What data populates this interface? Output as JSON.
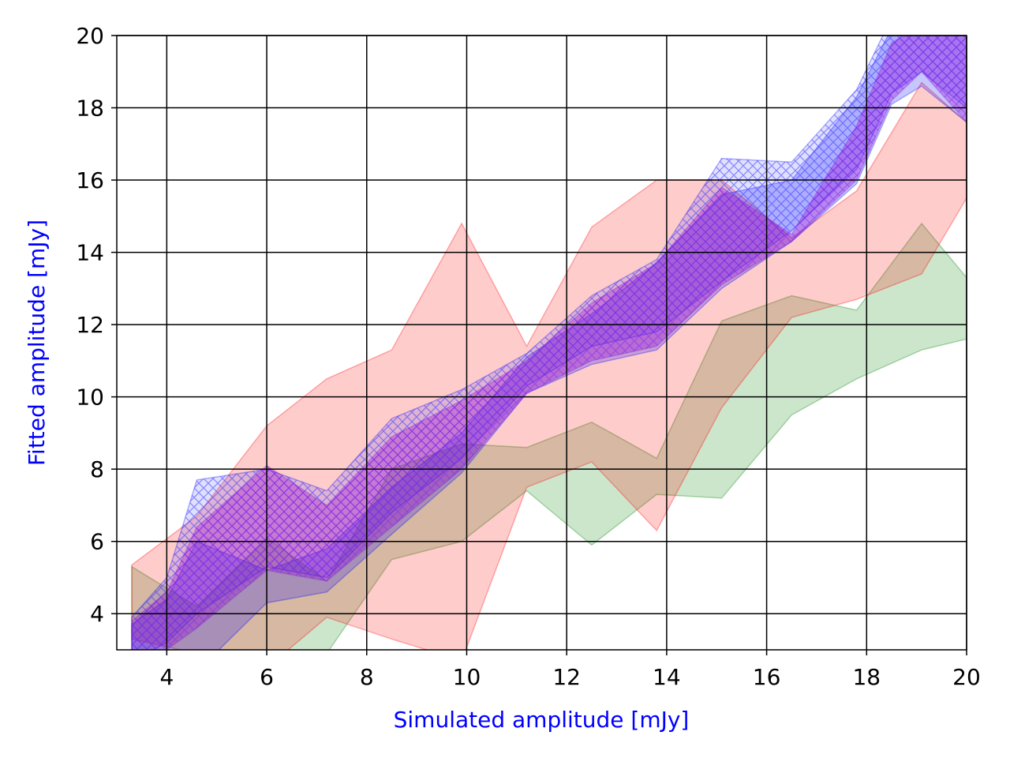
{
  "chart_data": {
    "type": "area",
    "title": "",
    "xlabel": "Simulated amplitude [mJy]",
    "ylabel": "Fitted amplitude [mJy]",
    "xlim": [
      3,
      20
    ],
    "ylim": [
      3,
      20
    ],
    "xticks": [
      4,
      6,
      8,
      10,
      12,
      14,
      16,
      18,
      20
    ],
    "yticks": [
      4,
      6,
      8,
      10,
      12,
      14,
      16,
      18,
      20
    ],
    "grid": true,
    "legend": "none",
    "colors": {
      "axis_label": "#0000ff",
      "blue_band": "#0000ff",
      "purple_band": "#9400d3",
      "red_band": "#ff0000",
      "green_band": "#008000",
      "grid": "#000000"
    },
    "bands": [
      {
        "color": "green",
        "hatch": false,
        "x": [
          3.3,
          4.6,
          6.0,
          7.2,
          8.5,
          9.9,
          11.2,
          12.5,
          13.8,
          15.1,
          16.5,
          17.8,
          19.1,
          20.0
        ],
        "upper": [
          5.3,
          4.2,
          6.1,
          4.9,
          8.0,
          8.7,
          8.6,
          9.3,
          8.3,
          12.1,
          12.8,
          12.4,
          14.8,
          13.3
        ],
        "lower": [
          3.0,
          2.8,
          2.5,
          2.9,
          5.5,
          6.0,
          7.4,
          5.9,
          7.3,
          7.2,
          9.5,
          10.5,
          11.3,
          11.6
        ]
      },
      {
        "color": "red",
        "hatch": false,
        "x": [
          3.3,
          4.6,
          6.0,
          7.2,
          8.5,
          9.9,
          11.2,
          12.5,
          13.8,
          15.1,
          16.5,
          17.8,
          19.1,
          20.0
        ],
        "upper": [
          5.35,
          6.7,
          9.2,
          10.5,
          11.3,
          14.8,
          11.4,
          14.7,
          16.0,
          16.0,
          14.4,
          15.7,
          18.7,
          17.6
        ],
        "lower": [
          3.3,
          2.9,
          2.5,
          3.9,
          3.3,
          2.7,
          7.5,
          8.2,
          6.3,
          9.7,
          12.2,
          12.7,
          13.4,
          15.5
        ]
      },
      {
        "color": "blue",
        "hatch": false,
        "x": [
          3.3,
          4.0,
          4.6,
          6.0,
          7.2,
          8.5,
          9.9,
          11.2,
          12.5,
          13.8,
          15.1,
          16.5,
          17.8,
          18.5,
          19.1,
          20.0
        ],
        "upper": [
          3.7,
          4.4,
          6.0,
          5.2,
          5.8,
          7.5,
          9.0,
          11.1,
          12.3,
          13.7,
          15.6,
          16.0,
          18.3,
          20.2,
          20.0,
          20.0
        ],
        "lower": [
          2.5,
          2.6,
          2.4,
          4.3,
          4.6,
          6.2,
          7.9,
          10.1,
          10.9,
          11.3,
          13.0,
          14.3,
          15.9,
          18.1,
          18.6,
          17.6
        ]
      },
      {
        "color": "blue",
        "hatch": true,
        "x": [
          3.3,
          4.0,
          4.6,
          6.0,
          7.2,
          8.5,
          9.9,
          11.2,
          12.5,
          13.8,
          15.1,
          16.5,
          17.8,
          18.5,
          19.1,
          20.0
        ],
        "upper": [
          3.9,
          5.0,
          7.7,
          8.0,
          7.4,
          9.4,
          10.2,
          11.2,
          12.8,
          13.8,
          16.6,
          16.5,
          18.5,
          20.5,
          20.4,
          20.3
        ],
        "lower": [
          2.7,
          3.2,
          4.0,
          5.3,
          5.0,
          6.8,
          8.3,
          10.3,
          11.4,
          11.8,
          13.2,
          14.6,
          16.3,
          18.4,
          19.0,
          18.0
        ]
      },
      {
        "color": "purple",
        "hatch": true,
        "x": [
          3.3,
          4.0,
          4.6,
          6.0,
          7.2,
          8.5,
          9.9,
          11.2,
          12.5,
          13.8,
          15.1,
          16.5,
          17.8,
          18.5,
          19.1,
          20.0
        ],
        "upper": [
          3.8,
          4.6,
          6.4,
          8.1,
          7.0,
          8.9,
          9.9,
          11.0,
          12.6,
          13.7,
          15.8,
          14.5,
          17.5,
          19.8,
          20.3,
          20.0
        ],
        "lower": [
          2.7,
          3.0,
          3.6,
          5.2,
          4.9,
          6.4,
          8.0,
          10.1,
          11.0,
          11.4,
          13.1,
          14.3,
          16.0,
          18.2,
          19.0,
          17.6
        ]
      }
    ]
  }
}
